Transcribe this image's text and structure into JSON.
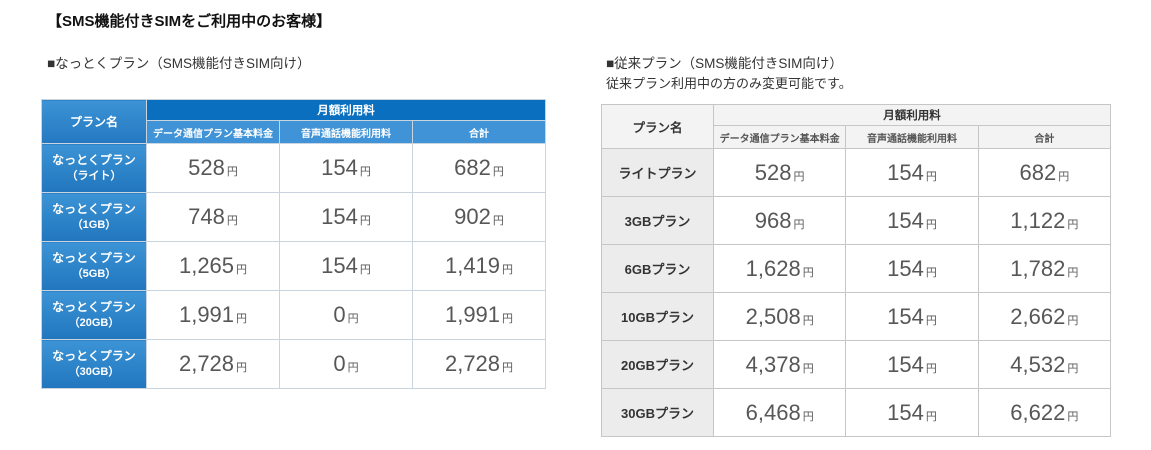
{
  "page": {
    "title": "【SMS機能付きSIMをご利用中のお客様】"
  },
  "shared": {
    "plan_col_header": "プラン名",
    "group_header": "月額利用料",
    "col_base": "データ通信プラン基本料金",
    "col_voice": "音声通話機能利用料",
    "col_total": "合計",
    "unit": "円"
  },
  "colors": {
    "header_dark_blue": "#0a6fbe",
    "header_mid_blue": "#4093d6",
    "plan_cell_blue": "#2e86c9",
    "header_gray": "#f3f3f3",
    "plan_cell_gray": "#ececec",
    "number_gray": "#575757"
  },
  "nattoku": {
    "heading": "■なっとくプラン（SMS機能付きSIM向け）",
    "rows": [
      {
        "name": "なっとくプラン",
        "sub": "（ライト）",
        "base": "528",
        "voice": "154",
        "total": "682"
      },
      {
        "name": "なっとくプラン",
        "sub": "（1GB）",
        "base": "748",
        "voice": "154",
        "total": "902"
      },
      {
        "name": "なっとくプラン",
        "sub": "（5GB）",
        "base": "1,265",
        "voice": "154",
        "total": "1,419"
      },
      {
        "name": "なっとくプラン",
        "sub": "（20GB）",
        "base": "1,991",
        "voice": "0",
        "total": "1,991"
      },
      {
        "name": "なっとくプラン",
        "sub": "（30GB）",
        "base": "2,728",
        "voice": "0",
        "total": "2,728"
      }
    ]
  },
  "jurai": {
    "heading": "■従来プラン（SMS機能付きSIM向け）",
    "note": "従来プラン利用中の方のみ変更可能です。",
    "rows": [
      {
        "name": "ライトプラン",
        "base": "528",
        "voice": "154",
        "total": "682"
      },
      {
        "name": "3GBプラン",
        "base": "968",
        "voice": "154",
        "total": "1,122"
      },
      {
        "name": "6GBプラン",
        "base": "1,628",
        "voice": "154",
        "total": "1,782"
      },
      {
        "name": "10GBプラン",
        "base": "2,508",
        "voice": "154",
        "total": "2,662"
      },
      {
        "name": "20GBプラン",
        "base": "4,378",
        "voice": "154",
        "total": "4,532"
      },
      {
        "name": "30GBプラン",
        "base": "6,468",
        "voice": "154",
        "total": "6,622"
      }
    ]
  }
}
